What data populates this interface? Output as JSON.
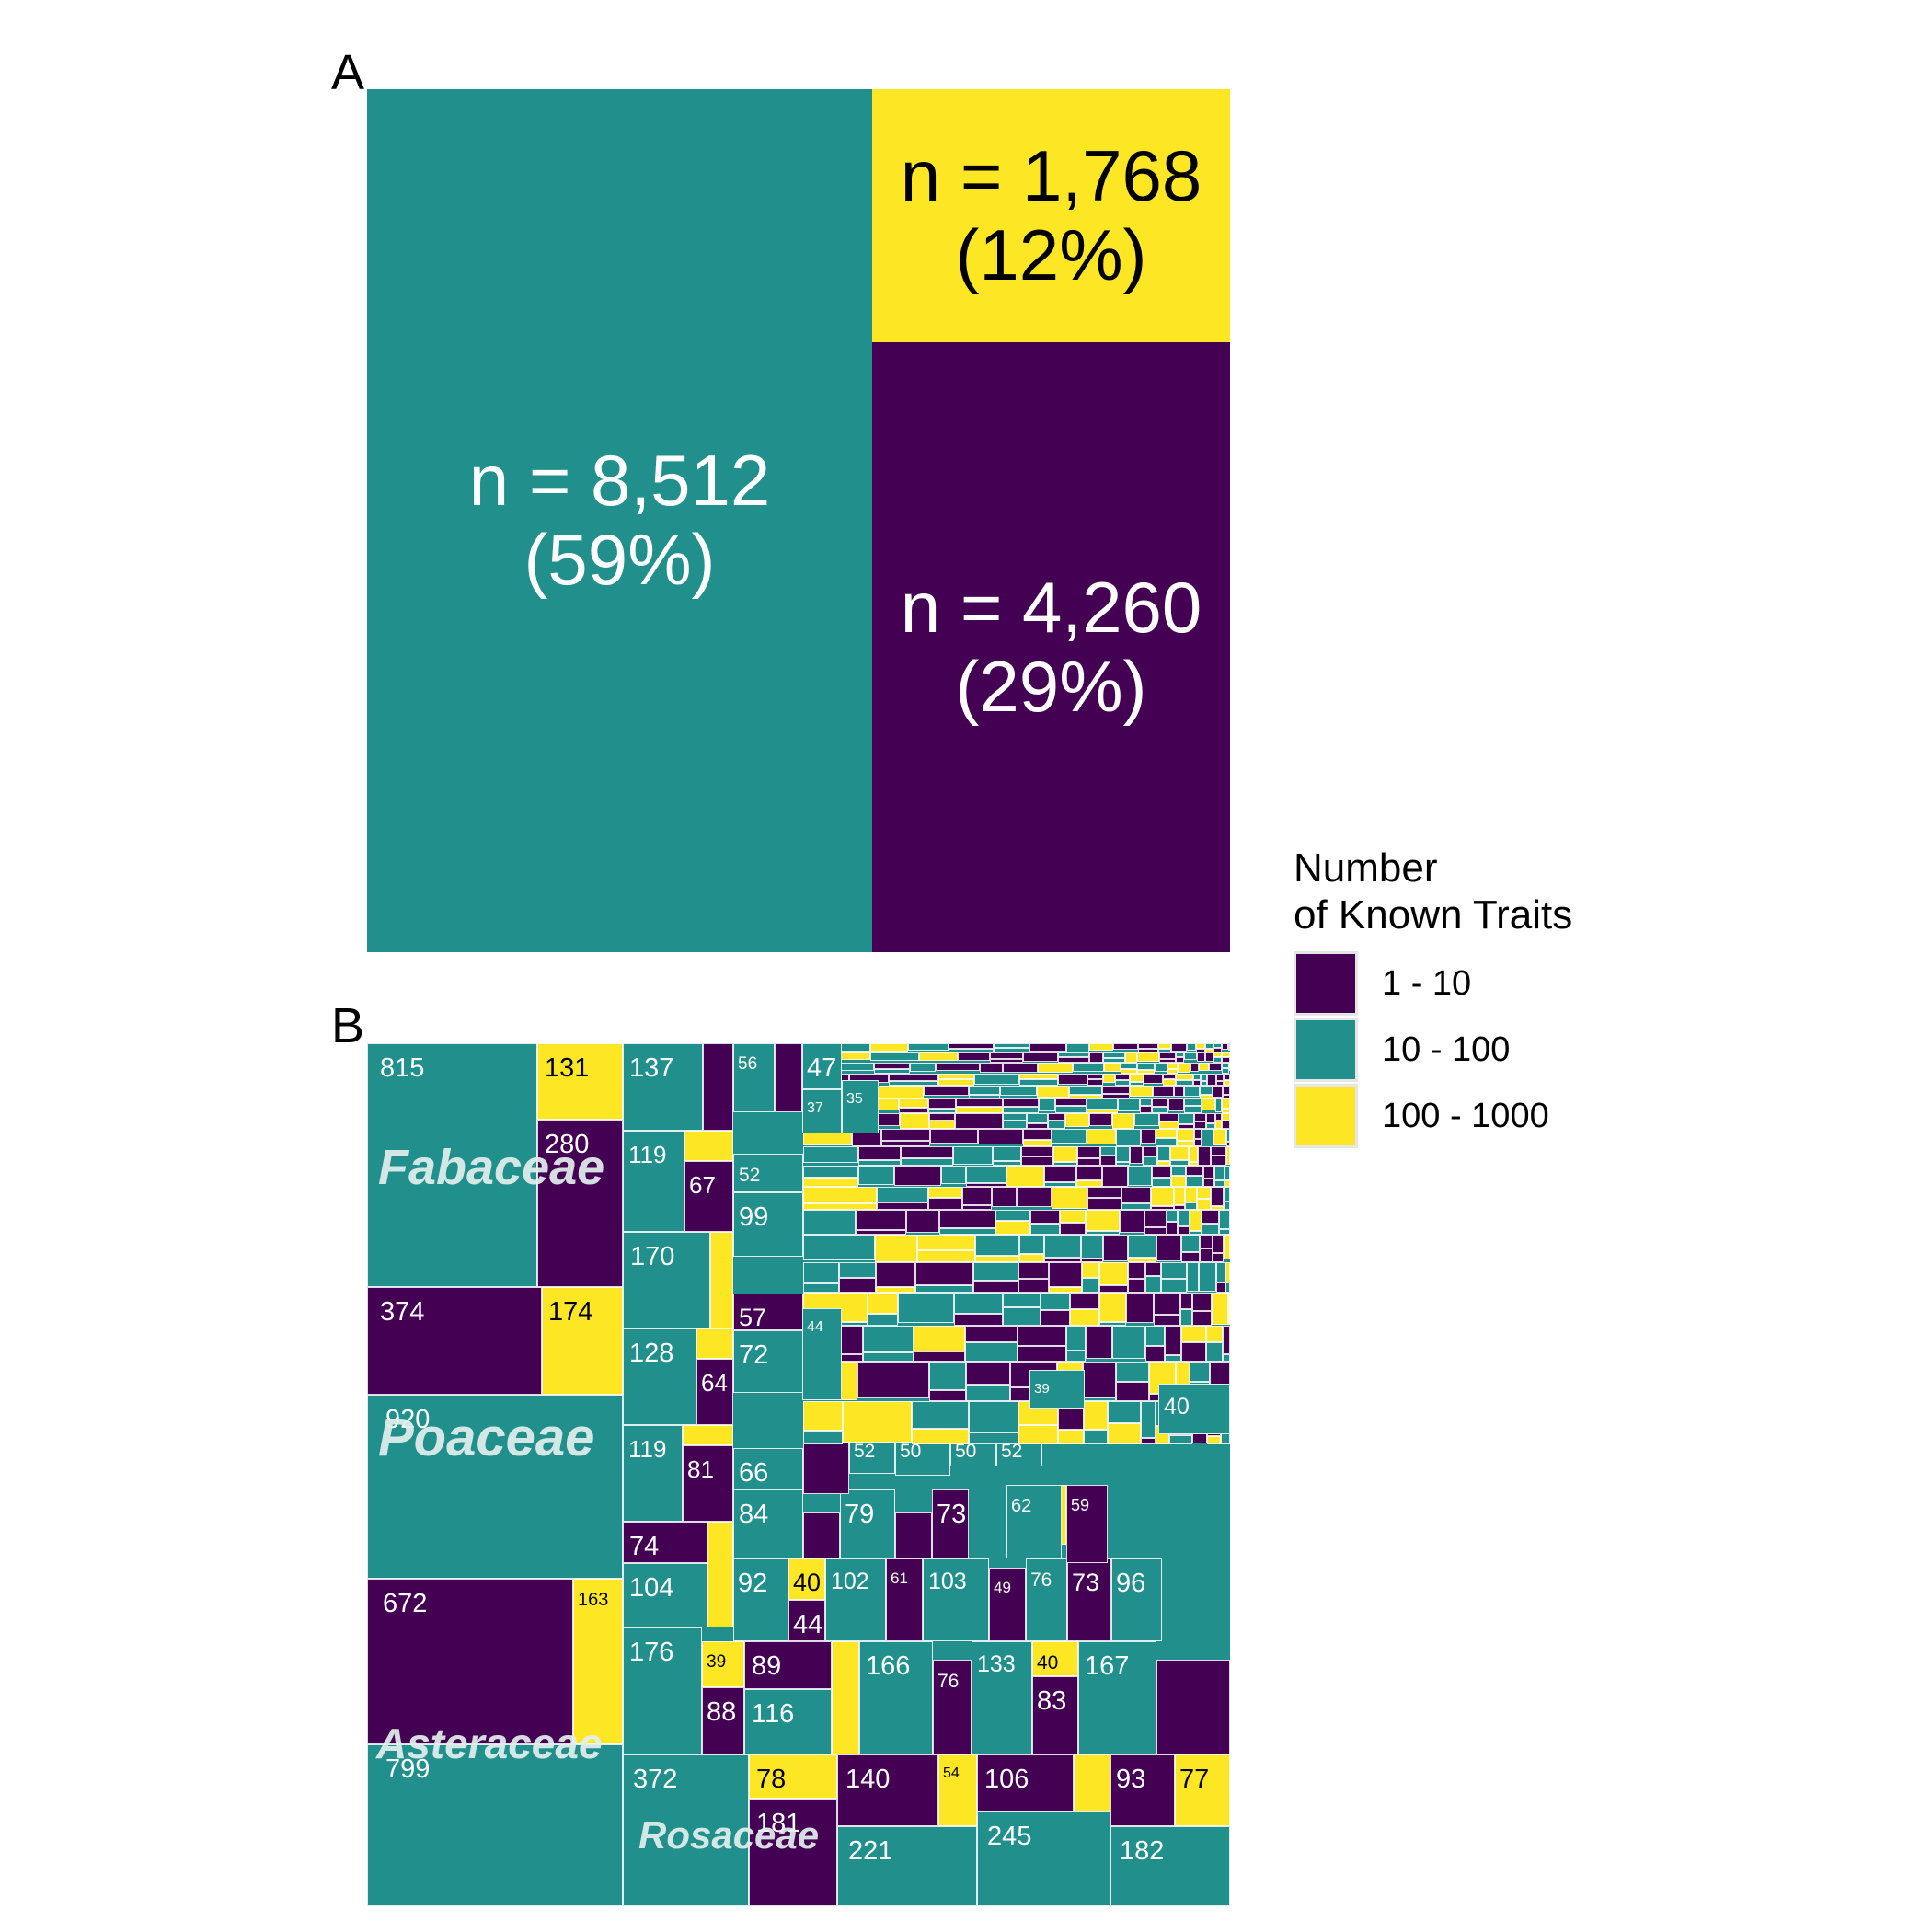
{
  "colors": {
    "low": "#440154",
    "mid": "#21908C",
    "high": "#FDE725"
  },
  "panel_a": {
    "letter": "A"
  },
  "panel_b": {
    "letter": "B"
  },
  "legend": {
    "title": "Number\nof Known Traits",
    "items": [
      {
        "label": "1 - 10",
        "color": "#440154"
      },
      {
        "label": "10 - 100",
        "color": "#21908C"
      },
      {
        "label": "100 - 1000",
        "color": "#FDE725"
      }
    ]
  },
  "chart_data": [
    {
      "type": "treemap",
      "panel": "A",
      "items": [
        {
          "category": "10 - 100",
          "n": 8512,
          "label_n": "n = 8,512",
          "label_pct": "(59%)",
          "color": "#21908C"
        },
        {
          "category": "100 - 1000",
          "n": 1768,
          "label_n": "n = 1,768",
          "label_pct": "(12%)",
          "color": "#FDE725"
        },
        {
          "category": "1 - 10",
          "n": 4260,
          "label_n": "n = 4,260",
          "label_pct": "(29%)",
          "color": "#440154"
        }
      ]
    },
    {
      "type": "treemap",
      "panel": "B",
      "families": [
        {
          "name": "Fabaceae",
          "cells": [
            {
              "value": 815,
              "category": "10 - 100"
            },
            {
              "value": 131,
              "category": "100 - 1000"
            },
            {
              "value": 280,
              "category": "1 - 10"
            }
          ]
        },
        {
          "name": "Poaceae",
          "cells": [
            {
              "value": 374,
              "category": "1 - 10"
            },
            {
              "value": 174,
              "category": "100 - 1000"
            },
            {
              "value": 920,
              "category": "10 - 100"
            }
          ]
        },
        {
          "name": "Asteraceae",
          "cells": [
            {
              "value": 672,
              "category": "1 - 10"
            },
            {
              "value": 163,
              "category": "100 - 1000"
            },
            {
              "value": 799,
              "category": "10 - 100"
            }
          ]
        },
        {
          "name": "Rosaceae",
          "cells": [
            {
              "value": 372,
              "category": "10 - 100"
            },
            {
              "value": 78,
              "category": "100 - 1000"
            },
            {
              "value": 181,
              "category": "1 - 10"
            }
          ]
        }
      ],
      "other_labelled_cells": [
        137,
        119,
        67,
        170,
        128,
        64,
        119,
        81,
        74,
        104,
        176,
        39,
        88,
        89,
        116,
        56,
        47,
        37,
        35,
        52,
        99,
        57,
        72,
        66,
        44,
        84,
        79,
        73,
        92,
        40,
        44,
        102,
        61,
        103,
        49,
        76,
        73,
        96,
        166,
        76,
        133,
        40,
        83,
        167,
        140,
        54,
        106,
        93,
        77,
        221,
        245,
        182,
        52,
        50,
        50,
        52,
        62,
        59,
        39,
        40
      ]
    }
  ]
}
